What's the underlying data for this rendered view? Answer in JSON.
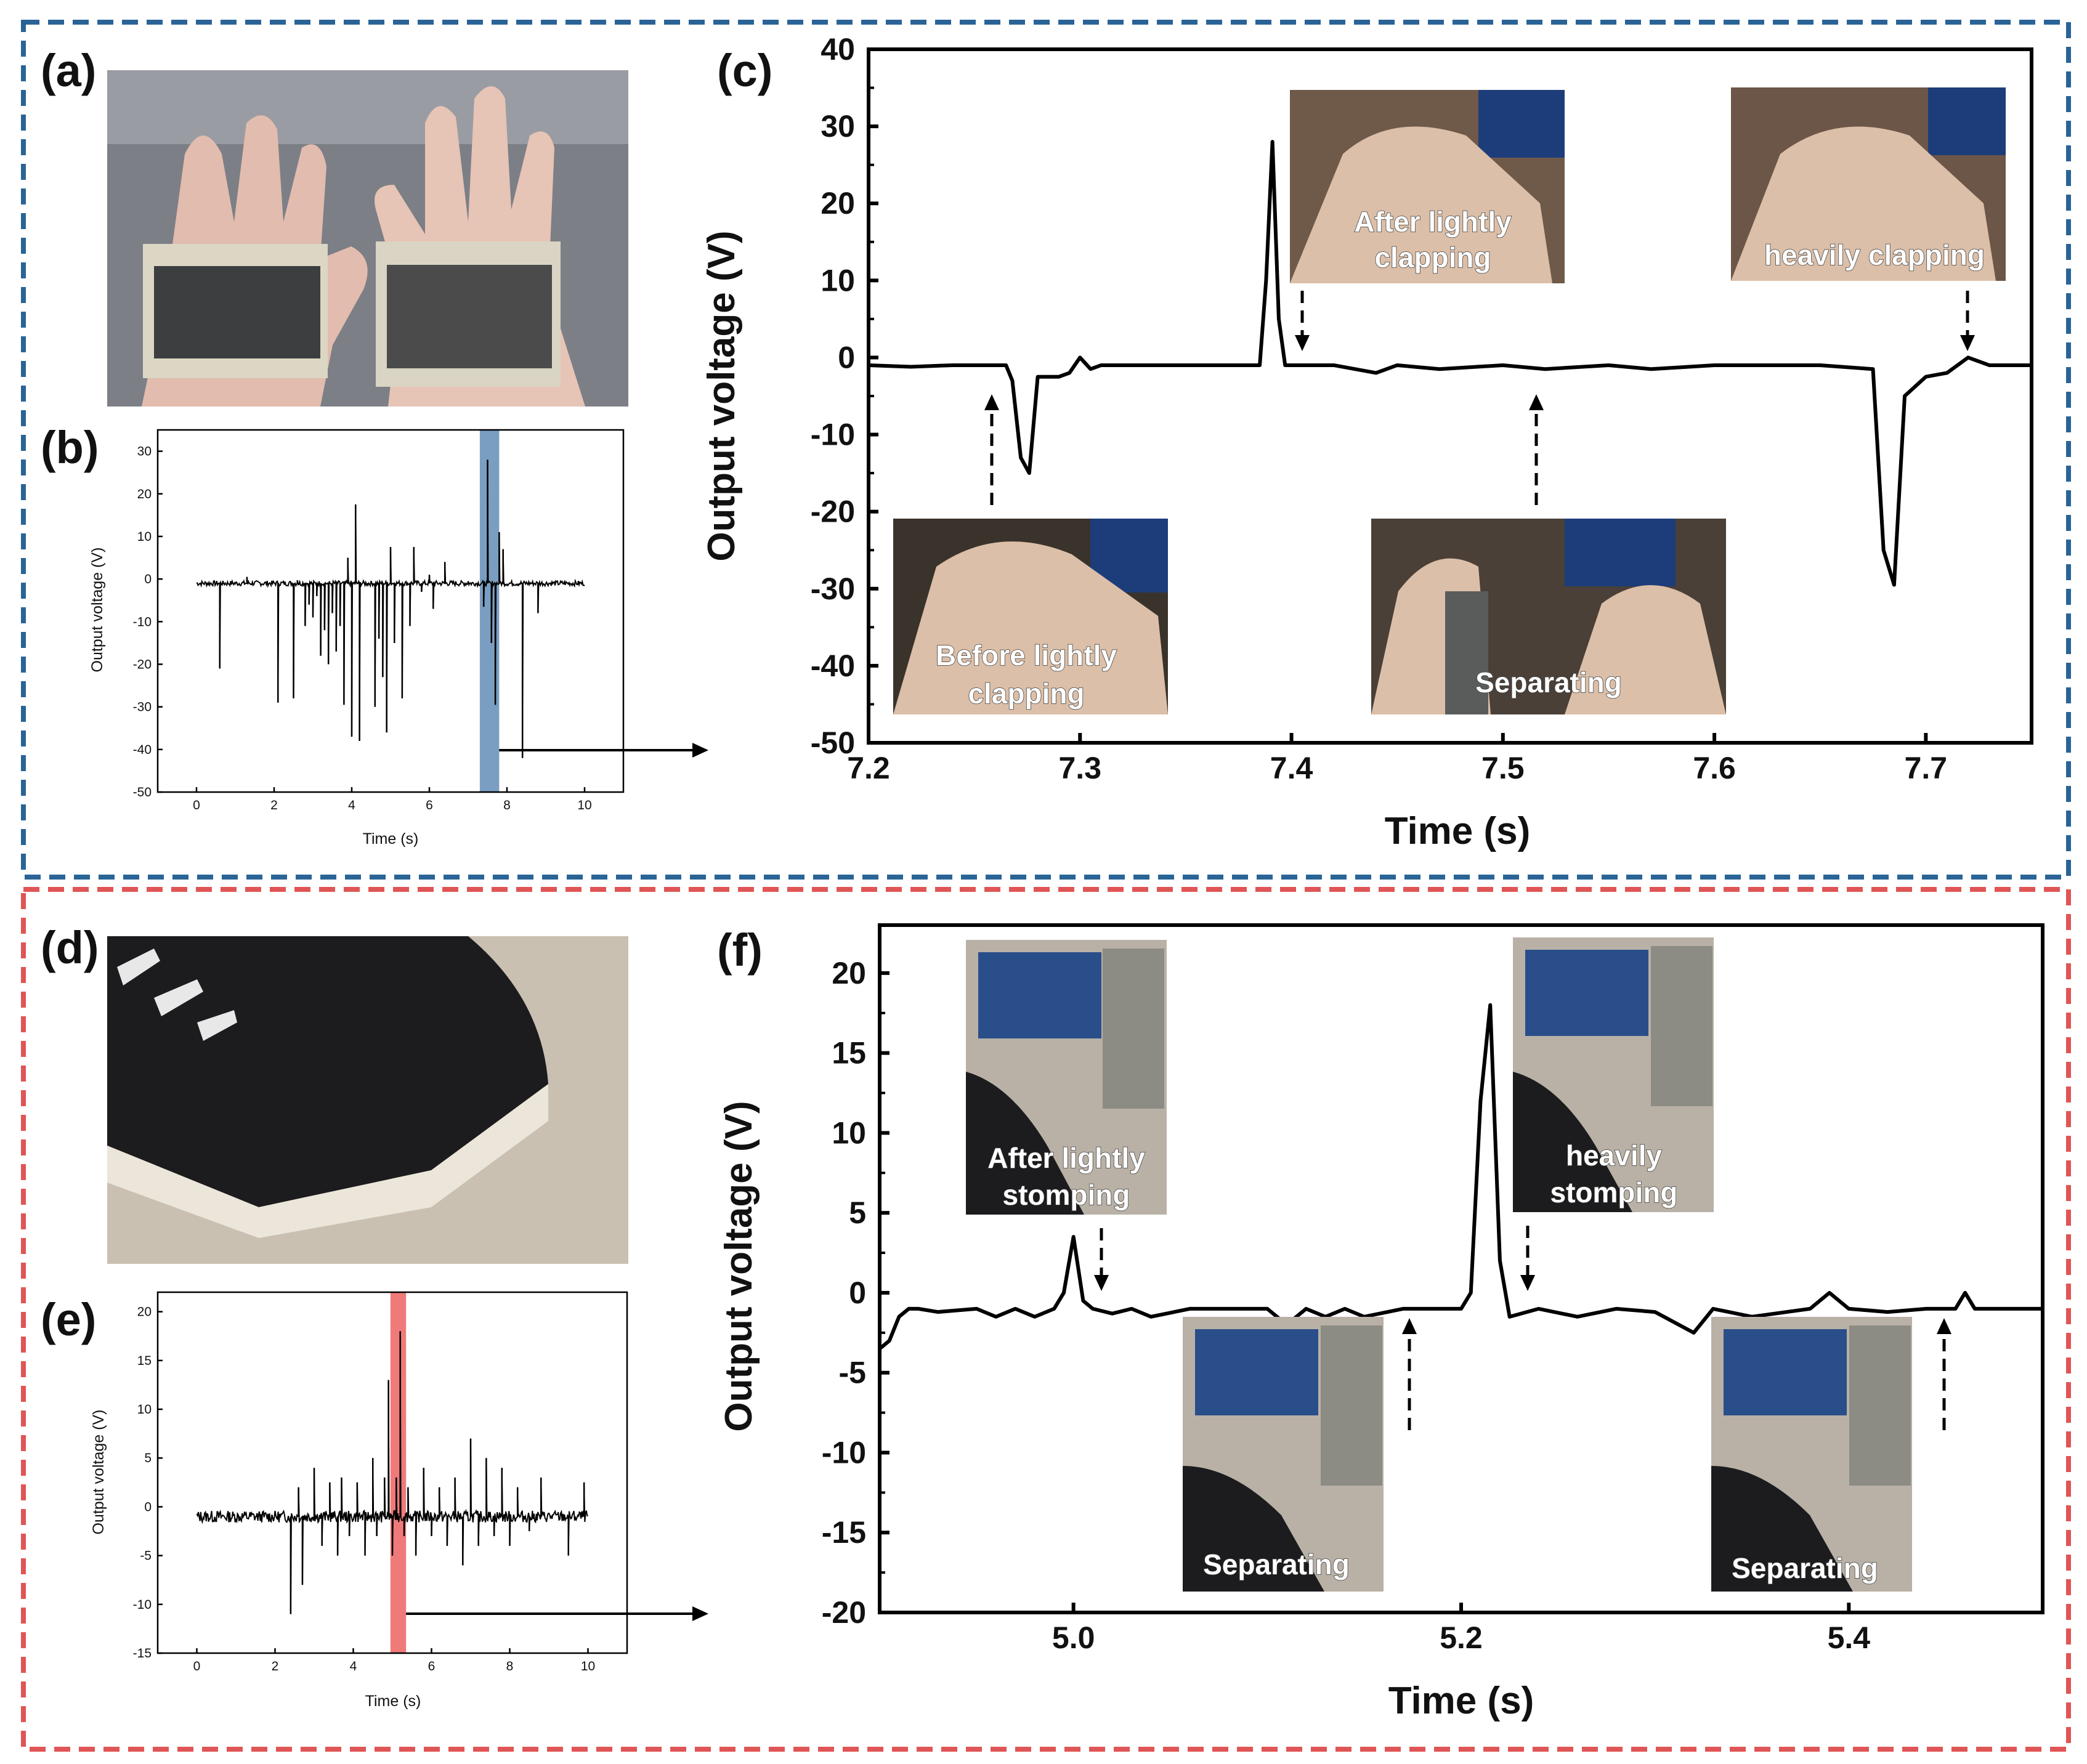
{
  "panels": {
    "a": "(a)",
    "b": "(b)",
    "c": "(c)",
    "d": "(d)",
    "e": "(e)",
    "f": "(f)"
  },
  "colors": {
    "top_frame": "#2a6496",
    "bottom_frame": "#e05555",
    "highlight_b": "#7a9ec2",
    "highlight_e": "#f07a7a",
    "trace": "#000000"
  },
  "captions": {
    "c_before": [
      "Before lightly",
      "clapping"
    ],
    "c_after": [
      "After lightly",
      "clapping"
    ],
    "c_heavy": [
      "heavily clapping"
    ],
    "c_separating": [
      "Separating"
    ],
    "f_after": [
      "After lightly",
      "stomping"
    ],
    "f_heavy": [
      "heavily",
      "stomping"
    ],
    "f_sep1": [
      "Separating"
    ],
    "f_sep2": [
      "Separating"
    ]
  },
  "chart_data": [
    {
      "id": "b",
      "type": "line",
      "xlabel": "Time (s)",
      "ylabel": "Output voltage (V)",
      "xlim": [
        -1,
        11
      ],
      "ylim": [
        -50,
        35
      ],
      "xticks": [
        0,
        2,
        4,
        6,
        8,
        10
      ],
      "yticks": [
        -50,
        -40,
        -30,
        -20,
        -10,
        0,
        10,
        20,
        30
      ],
      "highlight": [
        7.3,
        7.8
      ],
      "baseline": -1,
      "x_range": [
        0,
        10
      ],
      "spikes": [
        [
          0.6,
          -21
        ],
        [
          1.3,
          0.5
        ],
        [
          2.1,
          -29
        ],
        [
          2.5,
          -28
        ],
        [
          2.6,
          -0.3
        ],
        [
          2.8,
          -11
        ],
        [
          2.9,
          -6
        ],
        [
          3.0,
          -9
        ],
        [
          3.1,
          -4
        ],
        [
          3.2,
          -18
        ],
        [
          3.3,
          -12
        ],
        [
          3.4,
          -20
        ],
        [
          3.5,
          -8
        ],
        [
          3.6,
          -17
        ],
        [
          3.7,
          -11
        ],
        [
          3.8,
          -29.5
        ],
        [
          3.9,
          5
        ],
        [
          4.0,
          -37
        ],
        [
          4.1,
          17.5
        ],
        [
          4.2,
          -38
        ],
        [
          4.4,
          -1.5
        ],
        [
          4.6,
          -30
        ],
        [
          4.7,
          -14
        ],
        [
          4.8,
          -23
        ],
        [
          4.9,
          -36
        ],
        [
          5.0,
          7.5
        ],
        [
          5.1,
          -15
        ],
        [
          5.3,
          -28
        ],
        [
          5.5,
          -11
        ],
        [
          5.6,
          7.5
        ],
        [
          5.8,
          -3
        ],
        [
          6.0,
          1
        ],
        [
          6.1,
          -7
        ],
        [
          6.4,
          4
        ],
        [
          7.0,
          -0.5
        ],
        [
          7.4,
          -6.5
        ],
        [
          7.5,
          28
        ],
        [
          7.6,
          -15
        ],
        [
          7.7,
          -29.5
        ],
        [
          7.8,
          11
        ],
        [
          7.9,
          7
        ],
        [
          8.4,
          -42
        ],
        [
          8.8,
          -8
        ]
      ]
    },
    {
      "id": "c",
      "type": "line",
      "xlabel": "Time (s)",
      "ylabel": "Output voltage (V)",
      "xlim": [
        7.2,
        7.75
      ],
      "ylim": [
        -50,
        40
      ],
      "xticks": [
        7.2,
        7.3,
        7.4,
        7.5,
        7.6,
        7.7
      ],
      "yticks": [
        -50,
        -40,
        -30,
        -20,
        -10,
        0,
        10,
        20,
        30,
        40
      ],
      "series": [
        {
          "x": [
            7.2,
            7.22,
            7.24,
            7.265,
            7.268,
            7.272,
            7.276,
            7.28,
            7.29,
            7.295,
            7.3,
            7.305,
            7.31,
            7.32,
            7.34,
            7.36,
            7.385,
            7.388,
            7.391,
            7.394,
            7.397,
            7.42,
            7.43,
            7.44,
            7.45,
            7.47,
            7.5,
            7.52,
            7.55,
            7.57,
            7.6,
            7.65,
            7.675,
            7.68,
            7.685,
            7.69,
            7.7,
            7.71,
            7.72,
            7.725,
            7.73,
            7.74,
            7.75
          ],
          "y": [
            -1,
            -1.2,
            -1,
            -1,
            -3,
            -13,
            -15,
            -2.5,
            -2.5,
            -2,
            0,
            -1.5,
            -1,
            -1,
            -1,
            -1,
            -1,
            10,
            28,
            5,
            -1,
            -1,
            -1.5,
            -2,
            -1,
            -1.5,
            -1,
            -1.5,
            -1,
            -1.5,
            -1,
            -1,
            -1.5,
            -25,
            -29.5,
            -5,
            -2.5,
            -2,
            0,
            -0.5,
            -1,
            -1,
            -1
          ]
        }
      ]
    },
    {
      "id": "e",
      "type": "line",
      "xlabel": "Time (s)",
      "ylabel": "Output voltage (V)",
      "xlim": [
        -1,
        11
      ],
      "ylim": [
        -15,
        22
      ],
      "xticks": [
        0,
        2,
        4,
        6,
        8,
        10
      ],
      "yticks": [
        -15,
        -10,
        -5,
        0,
        5,
        10,
        15,
        20
      ],
      "highlight": [
        4.95,
        5.35
      ],
      "baseline": -1,
      "x_range": [
        0,
        10
      ],
      "spikes": [
        [
          2.4,
          -11
        ],
        [
          2.6,
          2
        ],
        [
          2.7,
          -8
        ],
        [
          3.0,
          4
        ],
        [
          3.2,
          -4
        ],
        [
          3.4,
          2.5
        ],
        [
          3.6,
          -5
        ],
        [
          3.7,
          3
        ],
        [
          3.9,
          -3
        ],
        [
          4.1,
          2.5
        ],
        [
          4.3,
          -5
        ],
        [
          4.5,
          5
        ],
        [
          4.6,
          -3
        ],
        [
          4.8,
          3
        ],
        [
          4.9,
          13
        ],
        [
          5.0,
          -5
        ],
        [
          5.1,
          3
        ],
        [
          5.2,
          18
        ],
        [
          5.3,
          -3
        ],
        [
          5.4,
          2
        ],
        [
          5.6,
          -5
        ],
        [
          5.8,
          4
        ],
        [
          6.0,
          -3
        ],
        [
          6.2,
          2
        ],
        [
          6.4,
          -4
        ],
        [
          6.6,
          3
        ],
        [
          6.8,
          -6
        ],
        [
          7.0,
          7
        ],
        [
          7.2,
          -4
        ],
        [
          7.4,
          5
        ],
        [
          7.6,
          -3
        ],
        [
          7.8,
          4
        ],
        [
          8.0,
          -4
        ],
        [
          8.2,
          2
        ],
        [
          8.5,
          -2.5
        ],
        [
          8.8,
          3
        ],
        [
          9.5,
          -5
        ],
        [
          9.9,
          2.5
        ]
      ]
    },
    {
      "id": "f",
      "type": "line",
      "xlabel": "Time (s)",
      "ylabel": "Output voltage (V)",
      "xlim": [
        4.9,
        5.5
      ],
      "ylim": [
        -20,
        23
      ],
      "xticks": [
        5.0,
        5.2,
        5.4
      ],
      "yticks": [
        -20,
        -15,
        -10,
        -5,
        0,
        5,
        10,
        15,
        20
      ],
      "series": [
        {
          "x": [
            4.9,
            4.905,
            4.91,
            4.915,
            4.92,
            4.93,
            4.95,
            4.96,
            4.97,
            4.98,
            4.99,
            4.995,
            5.0,
            5.005,
            5.01,
            5.02,
            5.03,
            5.04,
            5.06,
            5.08,
            5.1,
            5.11,
            5.12,
            5.13,
            5.14,
            5.15,
            5.17,
            5.2,
            5.205,
            5.21,
            5.215,
            5.22,
            5.225,
            5.24,
            5.26,
            5.28,
            5.3,
            5.32,
            5.33,
            5.35,
            5.38,
            5.39,
            5.4,
            5.42,
            5.44,
            5.455,
            5.46,
            5.465,
            5.48,
            5.5
          ],
          "y": [
            -3.5,
            -3,
            -1.5,
            -1,
            -1,
            -1.2,
            -1,
            -1.5,
            -1,
            -1.5,
            -1,
            0,
            3.5,
            -0.5,
            -1,
            -1.3,
            -1,
            -1.5,
            -1,
            -1,
            -1,
            -2,
            -1,
            -1.5,
            -1,
            -1.5,
            -1,
            -1,
            0,
            12,
            18,
            2,
            -1.5,
            -1,
            -1.5,
            -1,
            -1.2,
            -2.5,
            -1,
            -1.5,
            -1,
            0,
            -1,
            -1.2,
            -1,
            -1,
            0,
            -1,
            -1,
            -1
          ]
        }
      ]
    }
  ]
}
